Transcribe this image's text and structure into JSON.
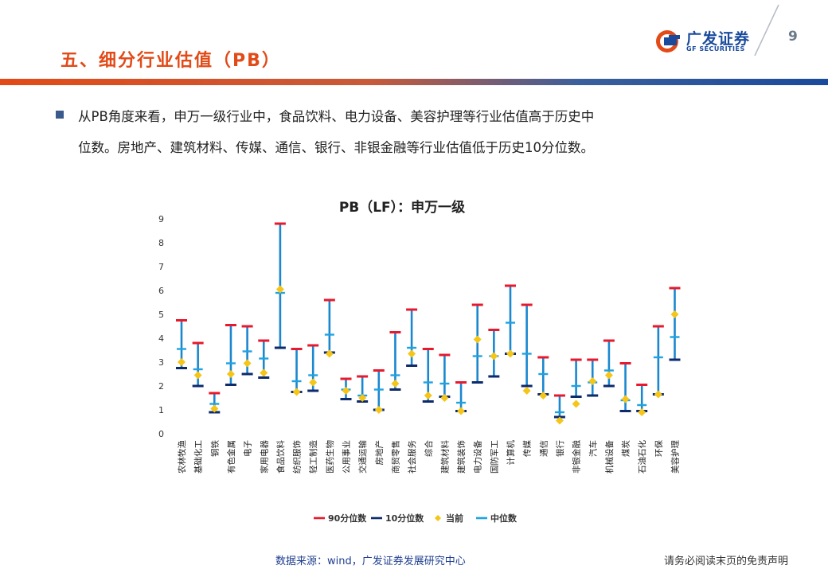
{
  "header": {
    "section_title": "五、细分行业估值（PB）",
    "page_number": "9",
    "logo_cn": "广发证券",
    "logo_en": "GF SECURITIES",
    "brand_colors": {
      "orange": "#e24a17",
      "blue": "#1a4a9c"
    }
  },
  "body": {
    "line1": "从PB角度来看，申万一级行业中，食品饮料、电力设备、美容护理等行业估值高于历史中",
    "line2": "位数。房地产、建筑材料、传媒、通信、银行、非银金融等行业估值低于历史10分位数。"
  },
  "chart_data": {
    "type": "range-marker",
    "title": "PB（LF）：申万一级",
    "ylim": [
      0,
      9
    ],
    "yticks": [
      "0",
      "1",
      "2",
      "3",
      "4",
      "5",
      "6",
      "7",
      "8",
      "9"
    ],
    "categories": [
      "农林牧渔",
      "基础化工",
      "钢铁",
      "有色金属",
      "电子",
      "家用电器",
      "食品饮料",
      "纺织服饰",
      "轻工制造",
      "医药生物",
      "公用事业",
      "交通运输",
      "房地产",
      "商贸零售",
      "社会服务",
      "综合",
      "建筑材料",
      "建筑装饰",
      "电力设备",
      "国防军工",
      "计算机",
      "传媒",
      "通信",
      "银行",
      "非银金融",
      "汽车",
      "机械设备",
      "煤炭",
      "石油石化",
      "环保",
      "美容护理"
    ],
    "series": [
      {
        "name": "90分位数",
        "color": "#e8192c",
        "values": [
          4.75,
          3.8,
          1.7,
          4.55,
          4.5,
          3.9,
          8.8,
          3.55,
          3.7,
          5.6,
          2.3,
          2.4,
          2.65,
          4.25,
          5.2,
          3.55,
          3.3,
          2.15,
          5.4,
          4.35,
          6.2,
          5.4,
          3.2,
          1.6,
          3.1,
          3.1,
          3.9,
          2.95,
          2.05,
          4.5,
          6.1
        ]
      },
      {
        "name": "10分位数",
        "color": "#0d2a6b",
        "values": [
          2.75,
          2.0,
          0.9,
          2.05,
          2.5,
          2.35,
          3.6,
          1.75,
          1.8,
          3.4,
          1.45,
          1.35,
          1.0,
          1.85,
          2.85,
          1.35,
          1.55,
          0.95,
          2.15,
          2.4,
          3.35,
          2.0,
          1.65,
          0.7,
          1.55,
          1.6,
          2.0,
          0.95,
          0.95,
          1.65,
          3.1
        ]
      },
      {
        "name": "当前",
        "color": "#f5c518",
        "values": [
          3.0,
          2.45,
          1.05,
          2.5,
          2.95,
          2.55,
          6.05,
          1.75,
          2.15,
          3.35,
          1.8,
          1.5,
          1.0,
          2.1,
          3.35,
          1.6,
          1.5,
          0.95,
          3.95,
          3.25,
          3.35,
          1.8,
          1.6,
          0.55,
          1.25,
          2.2,
          2.45,
          1.45,
          0.9,
          1.65,
          5.0
        ]
      },
      {
        "name": "中位数",
        "color": "#1fa3e0",
        "values": [
          3.55,
          2.7,
          1.25,
          2.95,
          3.45,
          3.15,
          5.9,
          2.2,
          2.45,
          4.15,
          1.85,
          1.6,
          1.85,
          2.45,
          3.6,
          2.15,
          2.1,
          1.3,
          3.25,
          3.25,
          4.65,
          3.35,
          2.5,
          0.9,
          2.0,
          2.15,
          2.65,
          1.4,
          1.2,
          3.2,
          4.05
        ]
      }
    ],
    "legend": [
      "90分位数",
      "10分位数",
      "当前",
      "中位数"
    ],
    "legend_position": "bottom",
    "grid": false
  },
  "footer": {
    "source": "数据来源：wind，广发证券发展研究中心",
    "disclaimer": "请务必阅读末页的免责声明"
  }
}
